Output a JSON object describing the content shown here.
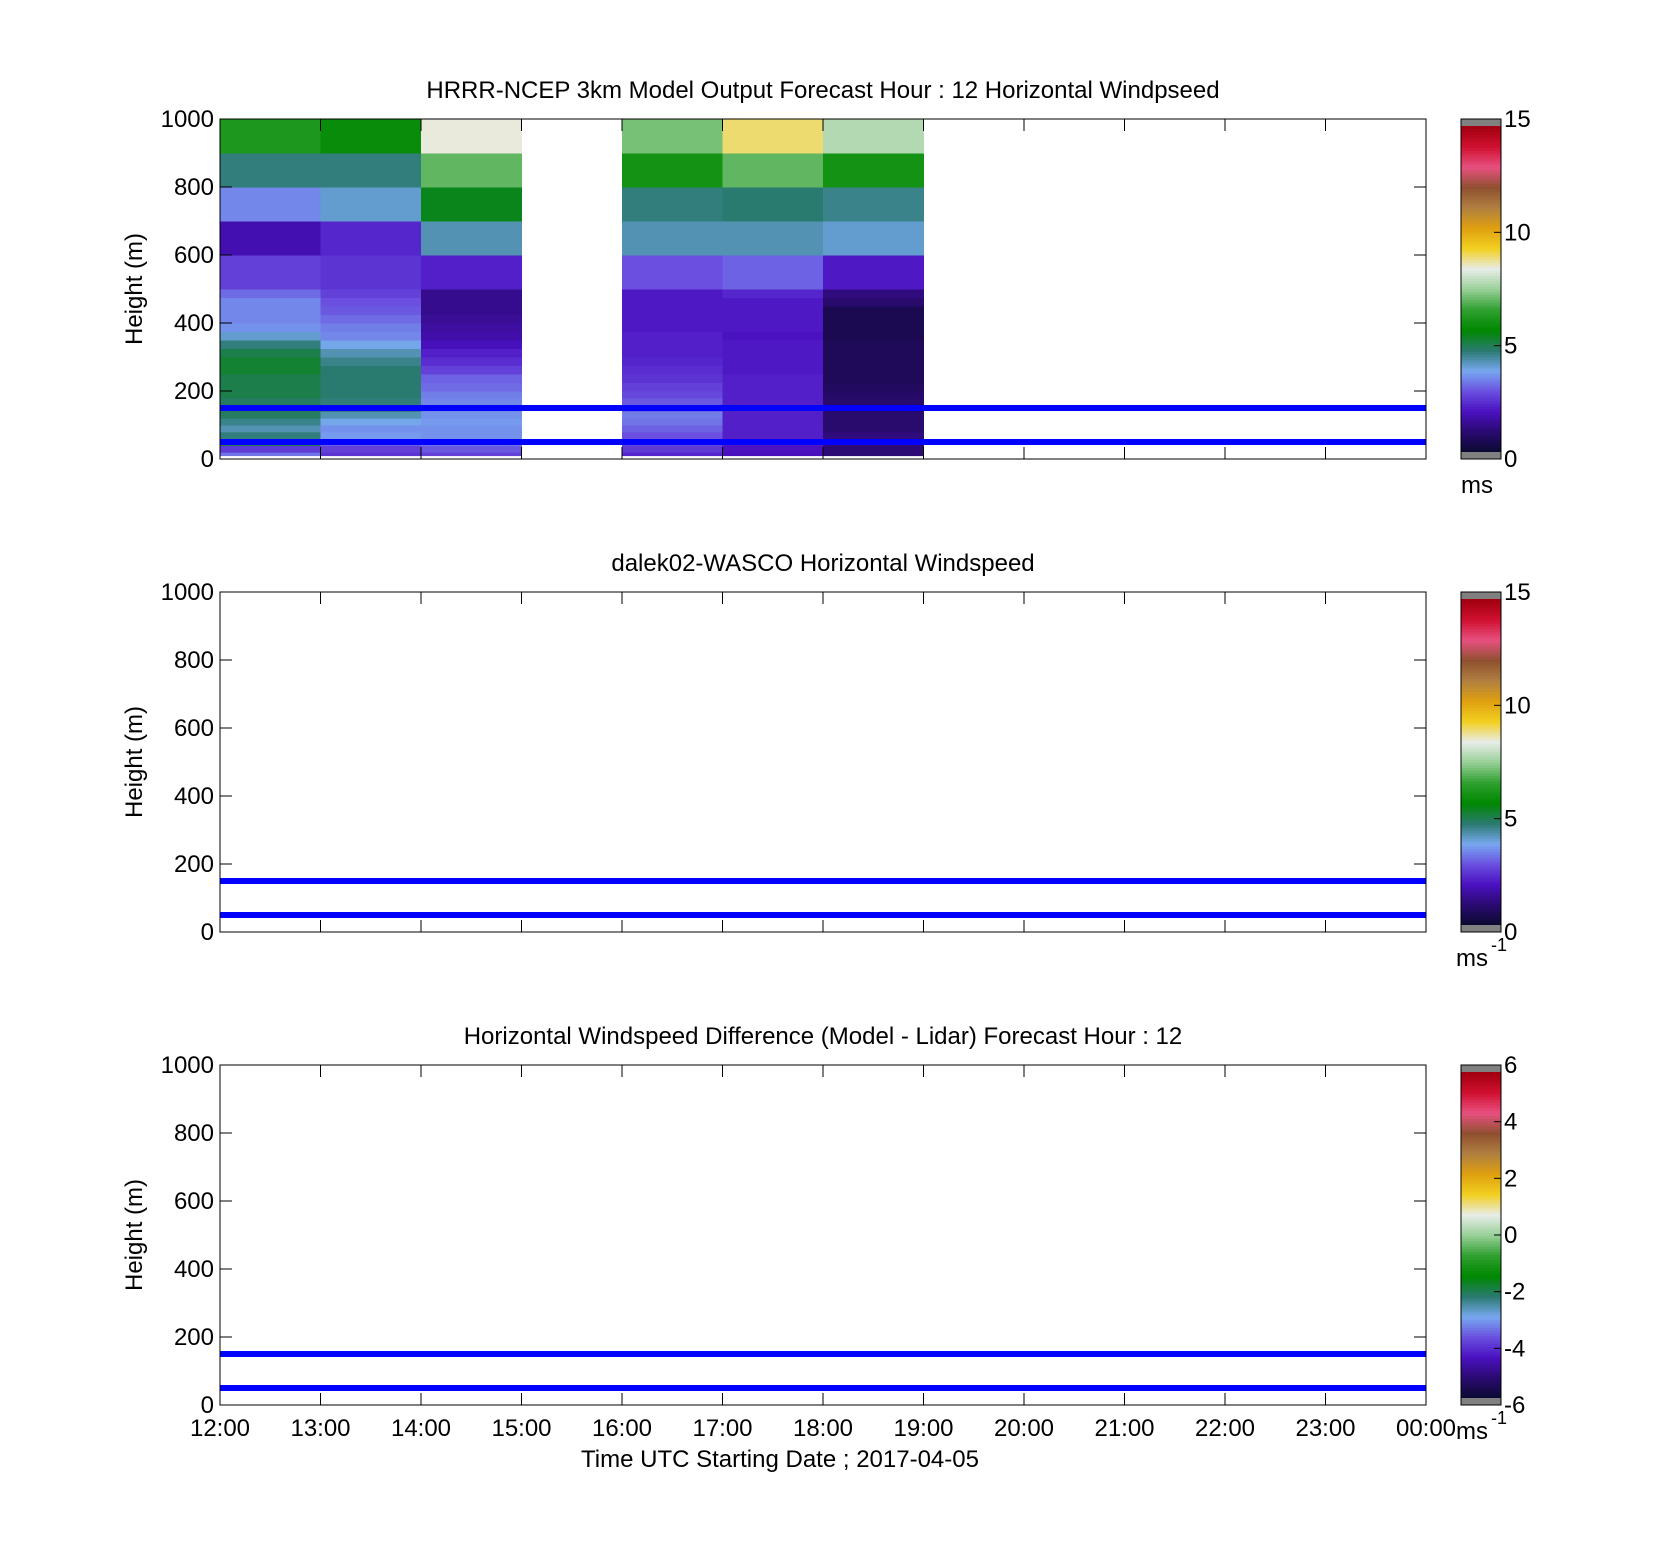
{
  "chart_data": [
    {
      "type": "heatmap",
      "title": "HRRR-NCEP 3km Model Output   Forecast Hour : 12 Horizontal Windpseed",
      "ylabel": "Height (m)",
      "xlabel": "",
      "ylim": [
        0,
        1000
      ],
      "yticks": [
        "0",
        "200",
        "400",
        "600",
        "800",
        "1000"
      ],
      "xticks": [
        "12:00",
        "13:00",
        "14:00",
        "15:00",
        "16:00",
        "17:00",
        "18:00",
        "19:00",
        "20:00",
        "21:00",
        "22:00",
        "23:00",
        "00:00"
      ],
      "show_xtick_labels": false,
      "x_hours": [
        0,
        12
      ],
      "colorbar": {
        "min": 0,
        "max": 15,
        "ticks": [
          "0",
          "5",
          "10",
          "15"
        ],
        "unit": "ms",
        "unit_sup": ""
      },
      "reference_lines_m": [
        50,
        150
      ],
      "heights_m": [
        20,
        40,
        60,
        80,
        100,
        120,
        140,
        160,
        180,
        200,
        225,
        250,
        275,
        300,
        325,
        350,
        375,
        400,
        425,
        450,
        475,
        500,
        600,
        700,
        800,
        900,
        1000
      ],
      "columns": [
        {
          "hour": 0,
          "values": [
            3.2,
            2.5,
            5.0,
            4.6,
            4.2,
            4.5,
            4.8,
            4.8,
            4.8,
            5.0,
            5.0,
            5.0,
            5.2,
            5.2,
            5.0,
            4.6,
            4.0,
            3.5,
            3.4,
            3.4,
            3.4,
            3.1,
            2.6,
            1.7,
            3.4,
            4.6,
            6.2
          ]
        },
        {
          "hour": 1,
          "values": [
            2.4,
            2.6,
            3.0,
            3.6,
            3.5,
            3.8,
            4.2,
            4.6,
            4.6,
            4.7,
            4.7,
            4.7,
            4.7,
            4.5,
            4.2,
            3.8,
            3.4,
            3.3,
            3.1,
            2.9,
            2.8,
            2.6,
            2.4,
            2.2,
            4.0,
            4.6,
            5.8
          ]
        },
        {
          "hour": 2,
          "values": [
            2.6,
            2.9,
            3.2,
            3.5,
            3.5,
            3.6,
            3.5,
            3.4,
            3.4,
            3.3,
            3.1,
            3.0,
            2.6,
            2.3,
            2.1,
            1.8,
            1.6,
            1.5,
            1.4,
            1.3,
            1.3,
            1.3,
            2.1,
            4.2,
            5.4,
            7.0,
            8.5
          ]
        },
        {
          "hour": 3,
          "values": []
        },
        {
          "hour": 4,
          "values": [
            2.2,
            2.5,
            2.7,
            2.8,
            3.0,
            3.2,
            3.3,
            3.0,
            2.9,
            2.7,
            2.6,
            2.4,
            2.3,
            2.2,
            2.1,
            2.1,
            2.1,
            2.0,
            2.0,
            2.0,
            2.0,
            2.0,
            2.8,
            4.2,
            4.6,
            6.0,
            7.2
          ]
        },
        {
          "hour": 5,
          "values": [
            1.8,
            1.9,
            2.0,
            2.1,
            2.1,
            2.1,
            2.1,
            2.1,
            2.1,
            2.1,
            2.1,
            2.1,
            2.0,
            2.0,
            2.0,
            2.0,
            1.9,
            2.0,
            2.0,
            2.0,
            2.0,
            2.2,
            3.0,
            4.2,
            4.7,
            7.0,
            9.0
          ]
        },
        {
          "hour": 6,
          "values": [
            1.0,
            1.0,
            1.1,
            1.1,
            0.9,
            0.9,
            0.9,
            0.9,
            0.9,
            0.8,
            0.7,
            0.6,
            0.6,
            0.6,
            0.6,
            0.6,
            0.5,
            0.5,
            0.5,
            0.5,
            0.9,
            1.1,
            2.0,
            4.0,
            4.5,
            6.0,
            7.8
          ]
        }
      ]
    },
    {
      "type": "heatmap",
      "title": "dalek02-WASCO  Horizontal Windspeed",
      "ylabel": "Height (m)",
      "xlabel": "",
      "ylim": [
        0,
        1000
      ],
      "yticks": [
        "0",
        "200",
        "400",
        "600",
        "800",
        "1000"
      ],
      "xticks": [
        "12:00",
        "13:00",
        "14:00",
        "15:00",
        "16:00",
        "17:00",
        "18:00",
        "19:00",
        "20:00",
        "21:00",
        "22:00",
        "23:00",
        "00:00"
      ],
      "show_xtick_labels": false,
      "x_hours": [
        0,
        12
      ],
      "colorbar": {
        "min": 0,
        "max": 15,
        "ticks": [
          "0",
          "5",
          "10",
          "15"
        ],
        "unit": "ms",
        "unit_sup": "-1"
      },
      "reference_lines_m": [
        50,
        150
      ],
      "heights_m": [],
      "columns": []
    },
    {
      "type": "heatmap",
      "title": "Horizontal Windspeed Difference (Model - Lidar) Forecast Hour : 12",
      "ylabel": "Height (m)",
      "xlabel": "Time UTC  Starting Date ; 2017-04-05",
      "ylim": [
        0,
        1000
      ],
      "yticks": [
        "0",
        "200",
        "400",
        "600",
        "800",
        "1000"
      ],
      "xticks": [
        "12:00",
        "13:00",
        "14:00",
        "15:00",
        "16:00",
        "17:00",
        "18:00",
        "19:00",
        "20:00",
        "21:00",
        "22:00",
        "23:00",
        "00:00"
      ],
      "show_xtick_labels": true,
      "x_hours": [
        0,
        12
      ],
      "colorbar": {
        "min": -6,
        "max": 6,
        "ticks": [
          "-6",
          "-4",
          "-2",
          "0",
          "2",
          "4",
          "6"
        ],
        "unit": "ms",
        "unit_sup": "-1"
      },
      "reference_lines_m": [
        50,
        150
      ],
      "heights_m": [],
      "columns": []
    }
  ],
  "colormap": [
    "#0a0a30",
    "#2a0a70",
    "#4a10c0",
    "#6a50e0",
    "#78a8f0",
    "#2a7a70",
    "#008800",
    "#30a030",
    "#98d098",
    "#e8ece8",
    "#f2d020",
    "#e0a010",
    "#b08040",
    "#905030",
    "#e85080",
    "#d01030",
    "#a00010"
  ],
  "colors": {
    "reference_line": "#0000ff",
    "axis": "#000000",
    "colorbar_cap": "#808080"
  }
}
